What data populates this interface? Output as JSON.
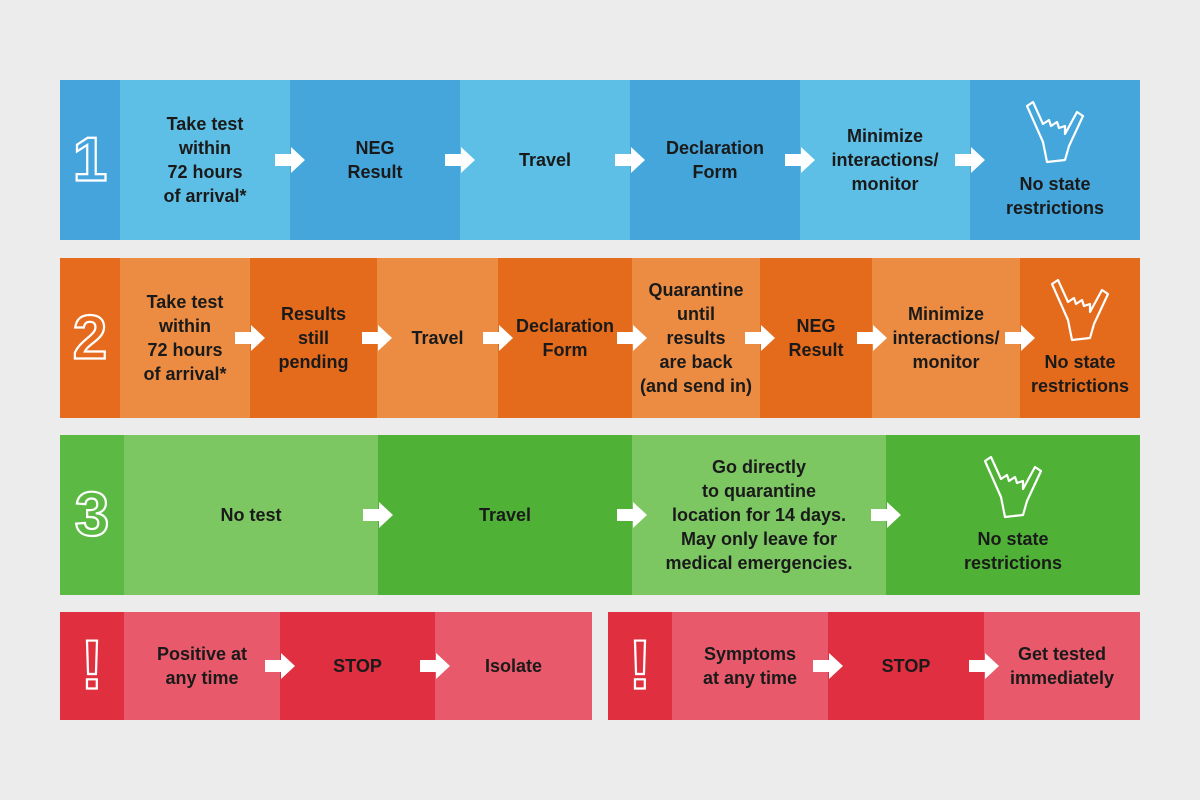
{
  "rows": [
    {
      "number": "1",
      "steps": [
        {
          "lines": [
            "Take test",
            "within",
            "72 hours",
            "of arrival*"
          ]
        },
        {
          "lines": [
            "NEG",
            "Result"
          ]
        },
        {
          "lines": [
            "Travel"
          ]
        },
        {
          "lines": [
            "Declaration",
            "Form"
          ]
        },
        {
          "lines": [
            "Minimize",
            "interactions/",
            "monitor"
          ]
        },
        {
          "lines": [
            "No state",
            "restrictions"
          ]
        }
      ]
    },
    {
      "number": "2",
      "steps": [
        {
          "lines": [
            "Take test",
            "within",
            "72 hours",
            "of arrival*"
          ]
        },
        {
          "lines": [
            "Results",
            "still",
            "pending"
          ]
        },
        {
          "lines": [
            "Travel"
          ]
        },
        {
          "lines": [
            "Declaration",
            "Form"
          ]
        },
        {
          "lines": [
            "Quarantine",
            "until",
            "results",
            "are back",
            "(and send in)"
          ]
        },
        {
          "lines": [
            "NEG",
            "Result"
          ]
        },
        {
          "lines": [
            "Minimize",
            "interactions/",
            "monitor"
          ]
        },
        {
          "lines": [
            "No state",
            "restrictions"
          ]
        }
      ]
    },
    {
      "number": "3",
      "steps": [
        {
          "lines": [
            "No test"
          ]
        },
        {
          "lines": [
            "Travel"
          ]
        },
        {
          "lines": [
            "Go directly",
            "to quarantine",
            "location for 14 days.",
            "May only leave for",
            "medical emergencies."
          ]
        },
        {
          "lines": [
            "No state",
            "restrictions"
          ]
        }
      ]
    }
  ],
  "alerts": [
    {
      "number": "!",
      "steps": [
        {
          "lines": [
            "Positive at",
            "any time"
          ]
        },
        {
          "lines": [
            "STOP"
          ]
        },
        {
          "lines": [
            "Isolate"
          ]
        }
      ]
    },
    {
      "number": "!",
      "steps": [
        {
          "lines": [
            "Symptoms",
            "at any time"
          ]
        },
        {
          "lines": [
            "STOP"
          ]
        },
        {
          "lines": [
            "Get tested",
            "immediately"
          ]
        }
      ]
    }
  ]
}
